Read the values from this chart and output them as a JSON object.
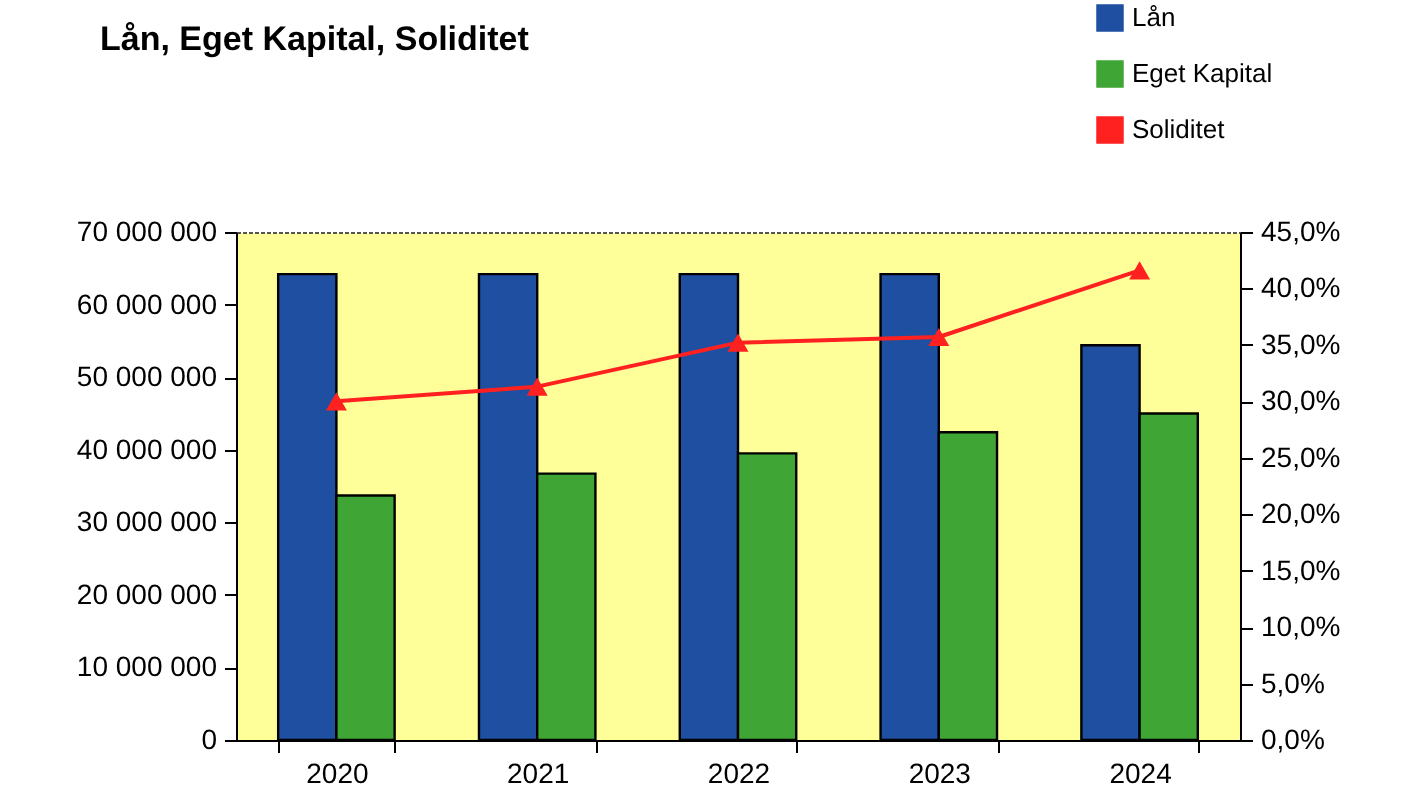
{
  "chart_data": {
    "type": "bar",
    "title": "Lån, Eget Kapital, Soliditet",
    "categories": [
      "2020",
      "2021",
      "2022",
      "2023",
      "2024"
    ],
    "series": [
      {
        "name": "Lån",
        "color": "#1f4fa0",
        "values": [
          64200000,
          64200000,
          64200000,
          64200000,
          54400000
        ]
      },
      {
        "name": "Eget Kapital",
        "color": "#3fa535",
        "values": [
          33700000,
          36700000,
          39500000,
          42400000,
          45000000
        ]
      },
      {
        "name": "Soliditet",
        "type": "line",
        "axis": "y2",
        "color": "#ff2020",
        "marker": "triangle",
        "values": [
          30.0,
          31.3,
          35.2,
          35.7,
          41.6
        ]
      }
    ],
    "ylim": [
      0,
      70000000
    ],
    "yticks": [
      {
        "value": 0,
        "label": "0"
      },
      {
        "value": 10000000,
        "label": "10 000 000"
      },
      {
        "value": 20000000,
        "label": "20 000 000"
      },
      {
        "value": 30000000,
        "label": "30 000 000"
      },
      {
        "value": 40000000,
        "label": "40 000 000"
      },
      {
        "value": 50000000,
        "label": "50 000 000"
      },
      {
        "value": 60000000,
        "label": "60 000 000"
      },
      {
        "value": 70000000,
        "label": "70 000 000"
      }
    ],
    "y2lim": [
      0,
      45
    ],
    "y2ticks": [
      {
        "value": 0,
        "label": "0,0%"
      },
      {
        "value": 5,
        "label": "5,0%"
      },
      {
        "value": 10,
        "label": "10,0%"
      },
      {
        "value": 15,
        "label": "15,0%"
      },
      {
        "value": 20,
        "label": "20,0%"
      },
      {
        "value": 25,
        "label": "25,0%"
      },
      {
        "value": 30,
        "label": "30,0%"
      },
      {
        "value": 35,
        "label": "35,0%"
      },
      {
        "value": 40,
        "label": "40,0%"
      },
      {
        "value": 45,
        "label": "45,0%"
      }
    ],
    "legend": "top right"
  }
}
